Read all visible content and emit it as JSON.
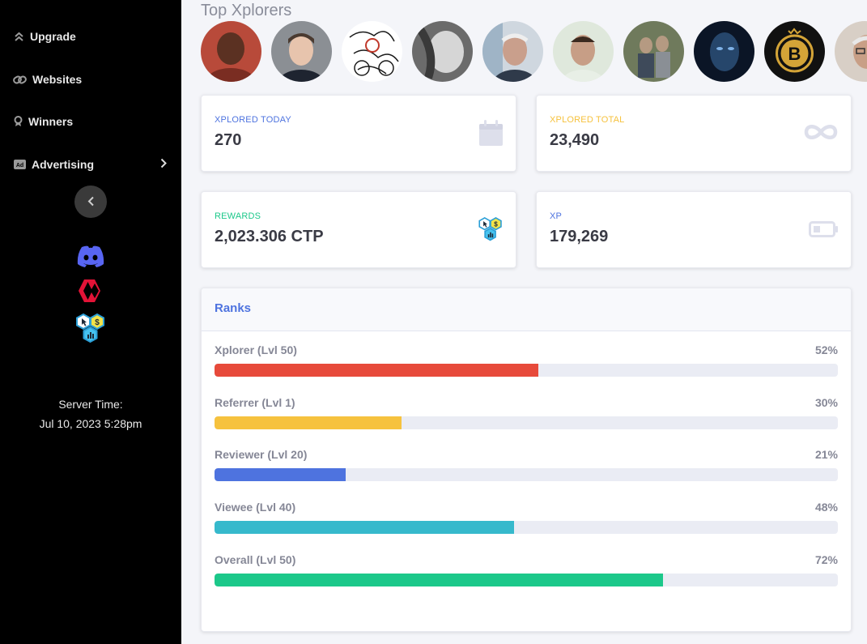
{
  "sidebar": {
    "items": [
      {
        "label": "Upgrade",
        "icon": "upgrade-chevrons-icon"
      },
      {
        "label": "Websites",
        "icon": "link-icon"
      },
      {
        "label": "Winners",
        "icon": "award-icon"
      },
      {
        "label": "Advertising",
        "icon": "ad-icon",
        "has_submenu": true
      }
    ],
    "social": [
      "discord-icon",
      "hive-icon",
      "ctp-hex-icon"
    ],
    "server_time_label": "Server Time:",
    "server_time_value": "Jul 10, 2023 5:28pm"
  },
  "top_xplorers": {
    "title": "Top Xplorers",
    "avatars": [
      {
        "name": "avatar-1",
        "bg": "#b84a3a",
        "fg": "#5b3122"
      },
      {
        "name": "avatar-2",
        "bg": "#8b8f94",
        "fg": "#e7c4ad"
      },
      {
        "name": "avatar-3",
        "bg": "#ffffff",
        "fg": "#1a1a1a"
      },
      {
        "name": "avatar-4",
        "bg": "#6b6b6b",
        "fg": "#d6d6d6"
      },
      {
        "name": "avatar-5",
        "bg": "#cfd7df",
        "fg": "#c99f8c"
      },
      {
        "name": "avatar-6",
        "bg": "#dfe8dc",
        "fg": "#c79e86"
      },
      {
        "name": "avatar-7",
        "bg": "#6f7a5c",
        "fg": "#b59a82"
      },
      {
        "name": "avatar-8",
        "bg": "#0b1526",
        "fg": "#3f6ea0"
      },
      {
        "name": "avatar-9",
        "bg": "#111111",
        "fg": "#d4a437"
      },
      {
        "name": "avatar-10",
        "bg": "#d8cfc6",
        "fg": "#c89f86"
      }
    ]
  },
  "stats": [
    {
      "label": "XPLORED TODAY",
      "value": "270",
      "icon": "calendar-icon",
      "color": "#4e73df"
    },
    {
      "label": "XPLORED TOTAL",
      "value": "23,490",
      "icon": "infinity-icon",
      "color": "#f6c23e"
    },
    {
      "label": "REWARDS",
      "value": "2,023.306 CTP",
      "icon": "ctp-hex-icon",
      "color": "#1cc88a"
    },
    {
      "label": "XP",
      "value": "179,269",
      "icon": "battery-icon",
      "color": "#4e73df"
    }
  ],
  "ranks": {
    "title": "Ranks",
    "items": [
      {
        "label": "Xplorer (Lvl 50)",
        "percent_text": "52%",
        "percent": 52,
        "color": "#e74a3b"
      },
      {
        "label": "Referrer (Lvl 1)",
        "percent_text": "30%",
        "percent": 30,
        "color": "#f6c23e"
      },
      {
        "label": "Reviewer (Lvl 20)",
        "percent_text": "21%",
        "percent": 21,
        "color": "#4e73df"
      },
      {
        "label": "Viewee (Lvl 40)",
        "percent_text": "48%",
        "percent": 48,
        "color": "#36b9cc"
      },
      {
        "label": "Overall (Lvl 50)",
        "percent_text": "72%",
        "percent": 72,
        "color": "#1cc88a"
      }
    ]
  }
}
